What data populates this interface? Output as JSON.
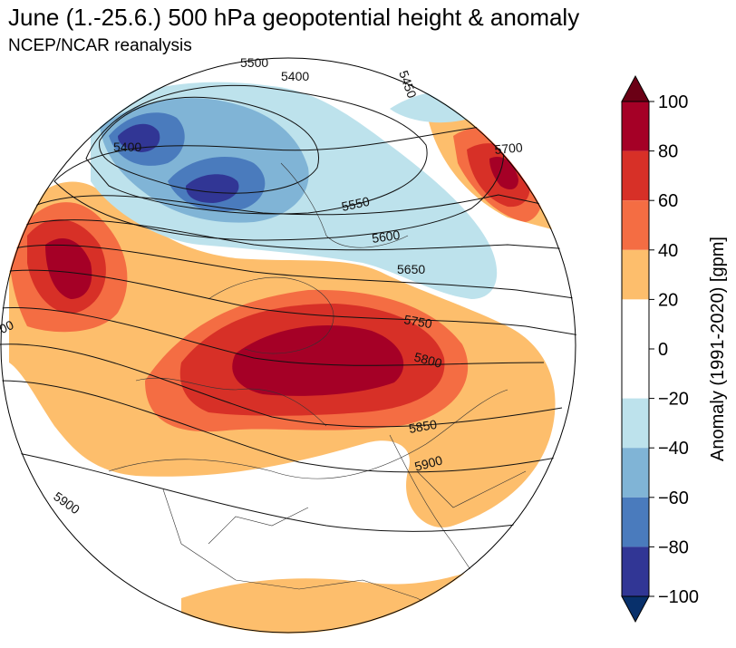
{
  "header": {
    "title": "June (1.-25.6.) 500 hPa geopotential height & anomaly",
    "subtitle": "NCEP/NCAR reanalysis"
  },
  "colorbar": {
    "label": "Anomaly (1991-2020) [gpm]",
    "ticks": [
      "100",
      "80",
      "60",
      "40",
      "20",
      "0",
      "−20",
      "−40",
      "−60",
      "−80",
      "−100"
    ],
    "levels": [
      {
        "range": "80 to 100",
        "color": "#a50026"
      },
      {
        "range": "60 to 80",
        "color": "#d73027"
      },
      {
        "range": "40 to 60",
        "color": "#f46d43"
      },
      {
        "range": "20 to 40",
        "color": "#fdbe6c"
      },
      {
        "range": "0 to 20",
        "color": "#ffffff"
      },
      {
        "range": "-20 to 0",
        "color": "#ffffff"
      },
      {
        "range": "-40 to -20",
        "color": "#bde2ec"
      },
      {
        "range": "-60 to -40",
        "color": "#80b4d6"
      },
      {
        "range": "-80 to -60",
        "color": "#4a7bbd"
      },
      {
        "range": "-100 to -80",
        "color": "#313695"
      }
    ],
    "over_color": "#6b0015",
    "under_color": "#08306b"
  },
  "contour_labels": [
    "5500",
    "5400",
    "5450",
    "5400",
    "5550",
    "5600",
    "5650",
    "5700",
    "5750",
    "5800",
    "5850",
    "5900",
    "5900",
    "5900"
  ]
}
